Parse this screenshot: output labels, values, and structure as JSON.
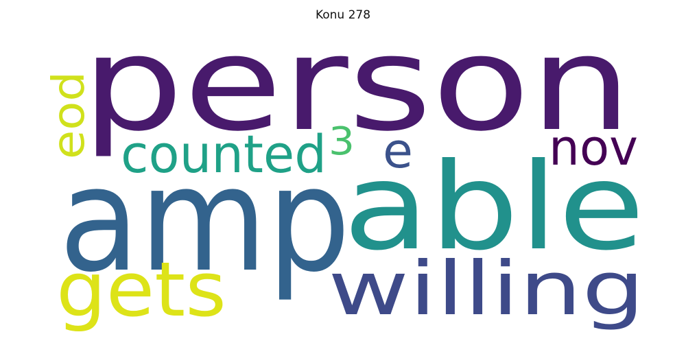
{
  "title": "Konu 278",
  "words": [
    {
      "text": "person",
      "color": "#481a6c",
      "rotated": false
    },
    {
      "text": "amp",
      "color": "#33638d",
      "rotated": false
    },
    {
      "text": "able",
      "color": "#21918c",
      "rotated": false
    },
    {
      "text": "willing",
      "color": "#3e4a89",
      "rotated": false
    },
    {
      "text": "gets",
      "color": "#dde318",
      "rotated": false
    },
    {
      "text": "counted",
      "color": "#1fa187",
      "rotated": false
    },
    {
      "text": "eod",
      "color": "#d0e11c",
      "rotated": true
    },
    {
      "text": "nov",
      "color": "#440154",
      "rotated": false
    },
    {
      "text": "e",
      "color": "#3b528b",
      "rotated": false
    },
    {
      "text": "3",
      "color": "#4ac16d",
      "rotated": false
    }
  ]
}
